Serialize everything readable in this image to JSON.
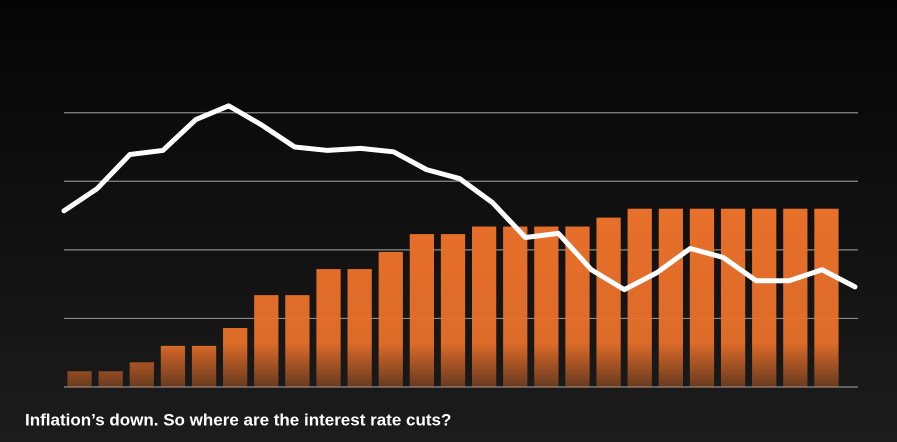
{
  "chart_data": {
    "type": "bar-line",
    "title": "Inflation’s down. So where are the interest rate cuts?",
    "categories": [
      null,
      null,
      null,
      null,
      null,
      null,
      null,
      null,
      null,
      null,
      null,
      null,
      null,
      null,
      null,
      null,
      null,
      null,
      null,
      null,
      null,
      null,
      null,
      null,
      null
    ],
    "series": [
      {
        "type": "bar",
        "color": "#e8702a",
        "values": [
          0.23,
          0.23,
          0.36,
          0.6,
          0.6,
          0.86,
          1.34,
          1.34,
          1.72,
          1.72,
          1.97,
          2.23,
          2.23,
          2.34,
          2.34,
          2.34,
          2.34,
          2.47,
          2.6,
          2.6,
          2.6,
          2.6,
          2.6,
          2.6,
          2.6
        ]
      },
      {
        "type": "line",
        "color": "#ffffff",
        "values": [
          2.57,
          2.89,
          3.39,
          3.45,
          3.9,
          4.1,
          3.82,
          3.5,
          3.45,
          3.48,
          3.43,
          3.17,
          3.04,
          2.69,
          2.18,
          2.24,
          1.71,
          1.42,
          1.67,
          2.02,
          1.89,
          1.55,
          1.55,
          1.71,
          1.46
        ]
      }
    ],
    "ylim": [
      0,
      4.2
    ],
    "yticks": [
      0,
      1,
      2,
      3,
      4
    ],
    "grid": true
  }
}
